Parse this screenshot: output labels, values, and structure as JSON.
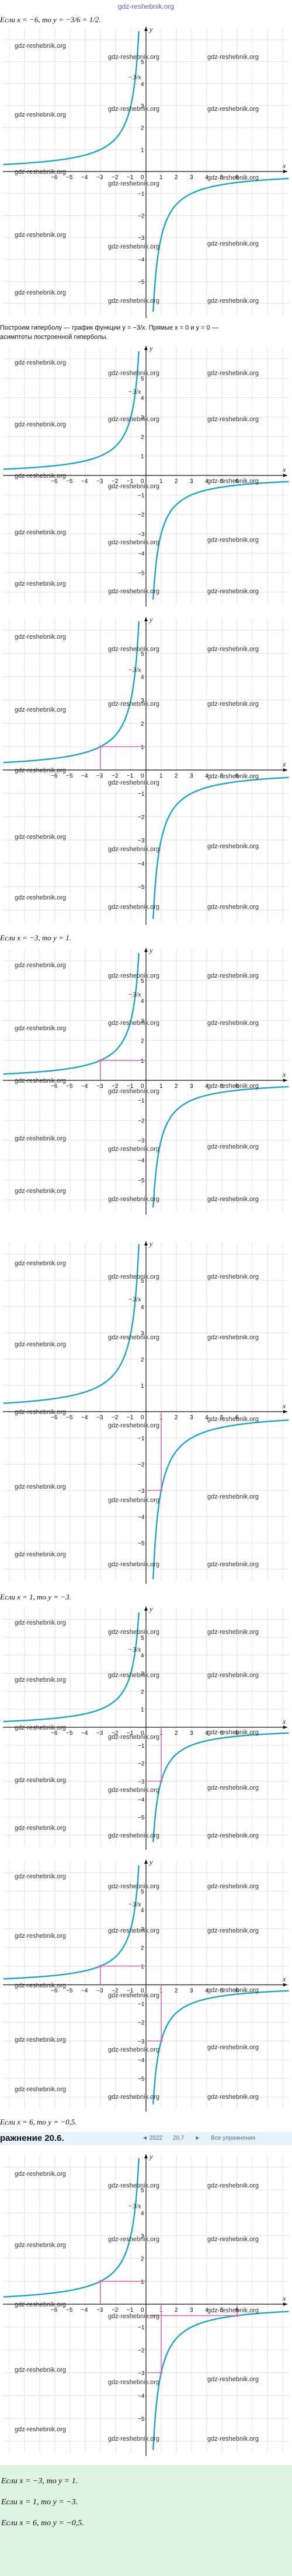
{
  "site": "gdz-reshebnik.org",
  "watermark": "gdz-reshebnik.org",
  "lines": {
    "l1": "Если x = −6, то y = −3/6 = 1/2.",
    "l2a": "Построим гиперболу — график функции y = −3/x. Прямые x = 0 и y = 0 —",
    "l2b": "асимптоты построенной гиперболы.",
    "l3": "Если x = −3, то y = 1.",
    "l4": "Если x = 1, то y = −3.",
    "l5": "Если x = 6, то y = −0,5."
  },
  "curve_label": "−3/x",
  "header": {
    "title": "ражнение 20.6.",
    "nav_prev": "◄ 2022",
    "nav_num": "20.7",
    "nav_next": "►",
    "nav_all": "Все упражнения"
  },
  "answer": {
    "a1": "Если x = −3, то y = 1.",
    "a2": "Если x = 1, то y = −3.",
    "a3": "Если x = 6, то y = −0,5."
  },
  "axes": {
    "x_label": "x",
    "y_label": "y",
    "zero": "0"
  },
  "colors": {
    "curve": "#1aa5cc",
    "marker": "#e06bb0",
    "axis": "#111111",
    "grid": "#e2e2e2",
    "answer_bg": "#dff3e3"
  },
  "panels": [
    {
      "marks": []
    },
    {
      "marks": []
    },
    {
      "marks": [
        {
          "x": -3,
          "y": 1
        }
      ]
    },
    {
      "marks": [
        {
          "x": -3,
          "y": 1
        }
      ]
    },
    {
      "marks": [
        {
          "x": 1,
          "y": -3
        }
      ]
    },
    {
      "marks": [
        {
          "x": 1,
          "y": -3
        }
      ]
    },
    {
      "marks": [
        {
          "x": -3,
          "y": 1
        },
        {
          "x": 1,
          "y": -3
        }
      ]
    },
    {
      "marks": [
        {
          "x": -3,
          "y": 1
        },
        {
          "x": 1,
          "y": -3
        },
        {
          "x": 6,
          "y": -0.5
        }
      ]
    }
  ]
}
